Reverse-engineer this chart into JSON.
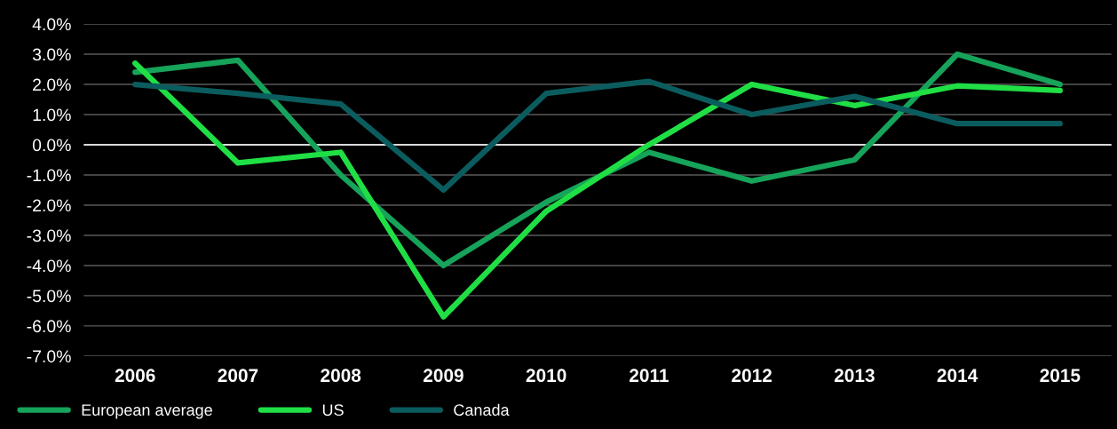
{
  "chart_data": {
    "type": "line",
    "categories": [
      "2006",
      "2007",
      "2008",
      "2009",
      "2010",
      "2011",
      "2012",
      "2013",
      "2014",
      "2015"
    ],
    "series": [
      {
        "name": "European average",
        "color": "#16a35a",
        "values": [
          2.4,
          2.8,
          -1.0,
          -4.0,
          -1.9,
          -0.25,
          -1.2,
          -0.5,
          3.0,
          2.0
        ]
      },
      {
        "name": "US",
        "color": "#1fdf45",
        "values": [
          2.7,
          -0.6,
          -0.25,
          -5.7,
          -2.2,
          0.0,
          2.0,
          1.3,
          1.95,
          1.8
        ]
      },
      {
        "name": "Canada",
        "color": "#0b5c5e",
        "values": [
          2.0,
          1.7,
          1.35,
          -1.5,
          1.7,
          2.1,
          1.0,
          1.6,
          0.7,
          0.7
        ]
      }
    ],
    "ylim": [
      -7.0,
      4.0
    ],
    "yticks": [
      {
        "value": -7,
        "label": "-7.0%"
      },
      {
        "value": -6,
        "label": "-6.0%"
      },
      {
        "value": -5,
        "label": "-5.0%"
      },
      {
        "value": -4,
        "label": "-4.0%"
      },
      {
        "value": -3,
        "label": "-3.0%"
      },
      {
        "value": -2,
        "label": "-2.0%"
      },
      {
        "value": -1,
        "label": "-1.0%"
      },
      {
        "value": 0,
        "label": "0.0%"
      },
      {
        "value": 1,
        "label": "1.0%"
      },
      {
        "value": 2,
        "label": "2.0%"
      },
      {
        "value": 3,
        "label": "3.0%"
      },
      {
        "value": 4,
        "label": "4.0%"
      }
    ],
    "ref_lines": [
      {
        "axis": "y",
        "value": 0,
        "color": "#d9d9d9"
      }
    ],
    "grid": "y",
    "legend": "bottom left",
    "marker": "none",
    "line_style": "solid"
  }
}
